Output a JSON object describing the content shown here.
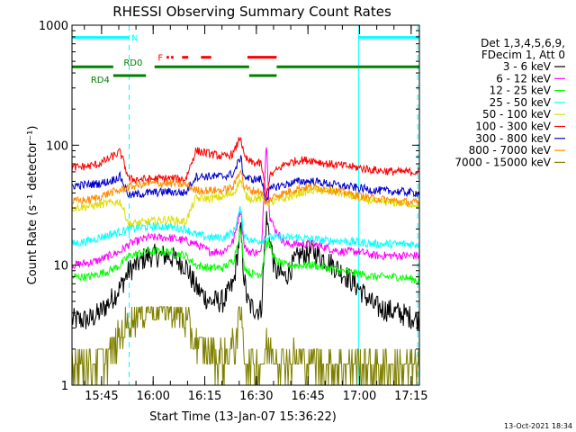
{
  "chart_data": {
    "type": "line",
    "title": "RHESSI Observing Summary Count Rates",
    "xlabel": "Start Time (13-Jan-07 15:36:22)",
    "ylabel": "Count Rate (s⁻¹ detector⁻¹)",
    "y_scale": "log",
    "ylim": [
      1,
      1000
    ],
    "xlim_minutes_after_start": [
      0,
      101
    ],
    "x_ticks": [
      {
        "label": "15:45",
        "t": 8.6
      },
      {
        "label": "16:00",
        "t": 23.6
      },
      {
        "label": "16:15",
        "t": 38.6
      },
      {
        "label": "16:30",
        "t": 53.6
      },
      {
        "label": "16:45",
        "t": 68.6
      },
      {
        "label": "17:00",
        "t": 83.6
      },
      {
        "label": "17:15",
        "t": 98.6
      }
    ],
    "y_ticks": [
      {
        "label": "1",
        "v": 1
      },
      {
        "label": "10",
        "v": 10
      },
      {
        "label": "100",
        "v": 100
      },
      {
        "label": "1000",
        "v": 1000
      }
    ],
    "legend_header": [
      "Det 1,3,4,5,6,9,",
      "FDecim 1, Att 0"
    ],
    "legend_placement": "right",
    "times": [
      0,
      5,
      8,
      11,
      14,
      16.6,
      22,
      28,
      33,
      36,
      40,
      44,
      47,
      49,
      50,
      51,
      52,
      55,
      56.5,
      57.5,
      59,
      62,
      66,
      70,
      74,
      78,
      83.3,
      88,
      95,
      101
    ],
    "series": [
      {
        "name": "3 - 6 keV",
        "color": "#000000",
        "values": [
          3.5,
          3.5,
          4,
          5,
          6.5,
          9,
          12,
          12,
          10,
          6.5,
          5,
          5,
          7,
          20,
          8,
          5,
          4.5,
          4.2,
          25,
          17,
          9,
          8,
          12,
          13,
          11,
          9,
          6.5,
          4.5,
          4,
          3.5
        ]
      },
      {
        "name": "6 - 12 keV",
        "color": "#ff00ff",
        "values": [
          10,
          10.5,
          11,
          12,
          13,
          15,
          17,
          17,
          16,
          15,
          13,
          13,
          16,
          30,
          15,
          13,
          13,
          12.5,
          110,
          25,
          20,
          15,
          15,
          15,
          14,
          13,
          13,
          12,
          12,
          12
        ]
      },
      {
        "name": "12 - 25 keV",
        "color": "#00ff00",
        "values": [
          8,
          8,
          8.5,
          9,
          10,
          12,
          13,
          13,
          12,
          10,
          9.5,
          9.5,
          11,
          20,
          10,
          9,
          8.5,
          8.5,
          15,
          15,
          11,
          10,
          10,
          10,
          9.5,
          9,
          8.5,
          8,
          8,
          7.5
        ]
      },
      {
        "name": "25 - 50 keV",
        "color": "#00ffff",
        "values": [
          15,
          16,
          17,
          18,
          19,
          20,
          21,
          21,
          20,
          18,
          17,
          17,
          19,
          30,
          18,
          17,
          16,
          16,
          17,
          17,
          17,
          17,
          17,
          16.5,
          16,
          16,
          15.5,
          15,
          15,
          15
        ]
      },
      {
        "name": "50 - 100 keV",
        "color": "#dddd00",
        "values": [
          30,
          31,
          32,
          33,
          34,
          22,
          23,
          24,
          23,
          36,
          36,
          37,
          40,
          52,
          40,
          37,
          36,
          36,
          34,
          33,
          34,
          36,
          40,
          42,
          42,
          40,
          36,
          34,
          33,
          32
        ]
      },
      {
        "name": "100 - 300 keV",
        "color": "#ff0000",
        "values": [
          65,
          67,
          70,
          78,
          88,
          52,
          52,
          53,
          52,
          90,
          85,
          80,
          85,
          120,
          80,
          75,
          72,
          70,
          38,
          55,
          60,
          70,
          75,
          75,
          70,
          68,
          65,
          62,
          60,
          60
        ]
      },
      {
        "name": "300 - 800 keV",
        "color": "#0000cc",
        "values": [
          46,
          47,
          48,
          50,
          55,
          38,
          40,
          41,
          40,
          55,
          55,
          55,
          58,
          80,
          55,
          53,
          52,
          52,
          35,
          42,
          45,
          47,
          50,
          50,
          48,
          46,
          44,
          42,
          41,
          40
        ]
      },
      {
        "name": "800 - 7000 keV",
        "color": "#ff8c00",
        "values": [
          34,
          35,
          37,
          40,
          42,
          45,
          48,
          48,
          47,
          42,
          42,
          42,
          45,
          65,
          45,
          43,
          42,
          41,
          32,
          35,
          38,
          40,
          44,
          45,
          43,
          41,
          38,
          36,
          34,
          33
        ]
      },
      {
        "name": "7000 - 15000 keV",
        "color": "#808000",
        "values": [
          1.6,
          1.5,
          1.6,
          1.7,
          2.5,
          3.5,
          4.5,
          4.5,
          3.5,
          2.2,
          1.8,
          1.7,
          2.0,
          4.0,
          2.0,
          1.6,
          1.5,
          1.5,
          2.0,
          2.0,
          1.8,
          1.7,
          1.6,
          1.6,
          1.5,
          1.5,
          1.5,
          1.4,
          1.4,
          1.4
        ]
      }
    ],
    "vertical_lines": [
      {
        "t": 0,
        "style": "solid",
        "color": "#00ffff"
      },
      {
        "t": 16.6,
        "style": "dashed",
        "color": "#00ffff"
      },
      {
        "t": 83.3,
        "style": "solid",
        "color": "#00ffff"
      },
      {
        "t": 100.5,
        "style": "dashed",
        "color": "#00ffff"
      }
    ],
    "flag_bars": [
      {
        "label": "N",
        "color": "#00ffff",
        "v": 790,
        "segments": [
          [
            0,
            16.5
          ],
          [
            83.3,
            101
          ]
        ]
      },
      {
        "label": "F",
        "color": "#ff0000",
        "v": 540,
        "segments": [
          [
            27.5,
            28.2
          ],
          [
            28.8,
            29.5
          ],
          [
            32,
            33.8
          ],
          [
            37.5,
            40.5
          ],
          [
            51,
            59.5
          ]
        ]
      },
      {
        "label": "RD0",
        "color": "#008000",
        "v": 450,
        "segments": [
          [
            0,
            12
          ],
          [
            24,
            51.5
          ],
          [
            59.5,
            101
          ]
        ]
      },
      {
        "label": "RD4",
        "color": "#008000",
        "v": 380,
        "segments": [
          [
            12,
            21.5
          ],
          [
            51.5,
            59.5
          ]
        ]
      }
    ]
  },
  "footer_date": "13-Oct-2021 18:34"
}
